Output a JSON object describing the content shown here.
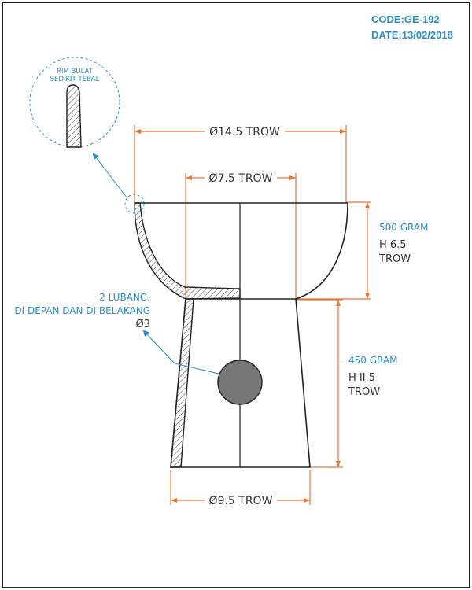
{
  "header": {
    "code": "CODE:GE-192",
    "date": "DATE:13/02/2018"
  },
  "callouts": {
    "rim_line1": "RIM BULAT",
    "rim_line2": "SEDIKIT TEBAL",
    "holes_line1": "2 LUBANG.",
    "holes_line2": "DI DEPAN DAN DI BELAKANG",
    "holes_line3": "Ø3"
  },
  "dimensions": {
    "top_diameter": "Ø14.5 TROW",
    "inner_diameter": "Ø7.5 TROW",
    "base_diameter": "Ø9.5 TROW",
    "bowl_weight": "500 GRAM",
    "bowl_height": "H 6.5",
    "bowl_height_unit": "TROW",
    "base_weight": "450 GRAM",
    "base_height": "H II.5",
    "base_height_unit": "TROW"
  },
  "colors": {
    "outline": "#222222",
    "dimension": "#e8753a",
    "annotation": "#2a8fc8",
    "hole": "#777777"
  }
}
